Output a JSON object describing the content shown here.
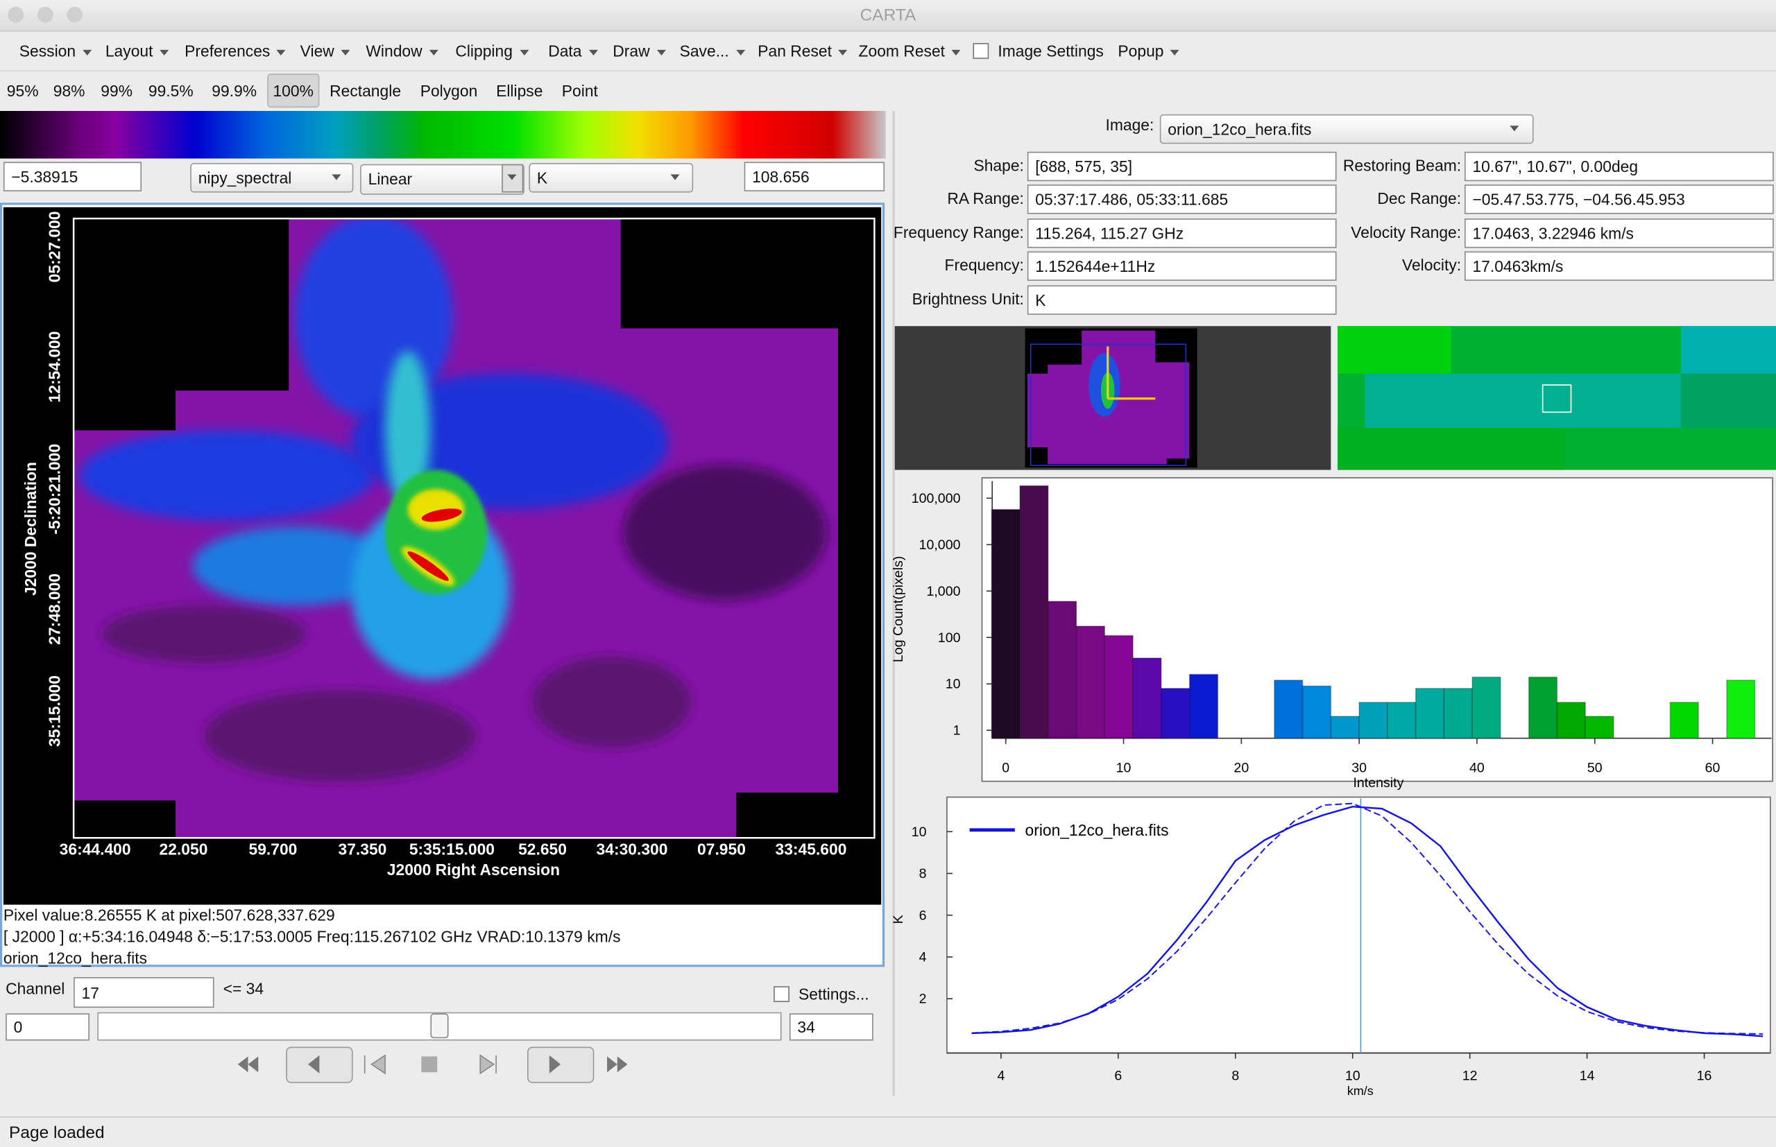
{
  "window": {
    "title": "CARTA"
  },
  "menu": [
    "Session",
    "Layout",
    "Preferences",
    "View",
    "Window",
    "Clipping",
    "Data",
    "Draw",
    "Save...",
    "Pan Reset",
    "Zoom Reset",
    "Image Settings",
    "Popup"
  ],
  "toolbar": [
    "95%",
    "98%",
    "99%",
    "99.5%",
    "99.9%",
    "100%",
    "Rectangle",
    "Polygon",
    "Ellipse",
    "Point"
  ],
  "colormap": {
    "min": "−5.38915",
    "name": "nipy_spectral",
    "scale": "Linear",
    "unit": "K",
    "max": "108.656"
  },
  "image_view": {
    "x_label": "J2000 Right Ascension",
    "y_label": "J2000 Declination",
    "x_ticks": [
      "36:44.400",
      "22.050",
      "59.700",
      "37.350",
      "5:35:15.000",
      "52.650",
      "34:30.300",
      "07.950",
      "33:45.600"
    ],
    "y_ticks": [
      "05:27.000",
      "12:54.000",
      "-5:20:21.000",
      "27:48.000",
      "35:15.000"
    ],
    "status": [
      "Pixel value:8.26555 K at pixel:507.628,337.629",
      "[ J2000 ] α:+5:34:16.04948 δ:−5:17:53.0005 Freq:115.267102 GHz VRAD:10.1379 km/s",
      "orion_12co_hera.fits"
    ]
  },
  "animator": {
    "label": "Channel",
    "value": "17",
    "limit": "<= 34",
    "settings": "Settings...",
    "start": "0",
    "end": "34"
  },
  "info": {
    "image_label": "Image:",
    "image_file": "orion_12co_hera.fits",
    "fields": [
      {
        "label": "Shape:",
        "value": "[688, 575, 35]"
      },
      {
        "label": "Restoring Beam:",
        "value": "10.67\", 10.67\", 0.00deg"
      },
      {
        "label": "RA Range:",
        "value": "05:37:17.486, 05:33:11.685"
      },
      {
        "label": "Dec Range:",
        "value": "−05.47.53.775, −04.56.45.953"
      },
      {
        "label": "Frequency Range:",
        "value": "115.264, 115.27 GHz"
      },
      {
        "label": "Velocity Range:",
        "value": "17.0463, 3.22946 km/s"
      },
      {
        "label": "Frequency:",
        "value": "1.152644e+11Hz"
      },
      {
        "label": "Velocity:",
        "value": "17.0463km/s"
      },
      {
        "label": "Brightness Unit:",
        "value": "K"
      }
    ]
  },
  "histogram": {
    "type": "histogram",
    "x_label": "Intensity",
    "y_label": "Log Count(pixels)",
    "log_scale": true,
    "bins": [
      -1.2,
      1.2,
      3.6,
      6.0,
      8.4,
      10.8,
      13.2,
      15.6,
      18.0,
      20.4,
      22.8,
      25.2,
      27.6,
      30.0,
      32.4,
      34.8,
      37.2,
      39.6,
      42.0,
      44.4,
      46.8,
      49.2,
      51.6,
      54.0,
      56.4,
      58.8,
      61.2,
      63.6
    ],
    "counts": [
      57000,
      185000,
      600,
      175,
      110,
      36,
      8,
      16,
      0,
      0,
      12,
      9,
      2,
      4,
      4,
      8,
      8,
      14,
      0,
      14,
      4,
      2,
      0,
      0,
      4,
      0,
      12
    ],
    "colors": [
      "#1e0a24",
      "#4a0a4e",
      "#6a0a75",
      "#7a0a85",
      "#850595",
      "#5a08a8",
      "#2810c0",
      "#0a1ad0",
      "#0030dd",
      "#0050dd",
      "#0070dd",
      "#0088dd",
      "#0098cc",
      "#00a0b8",
      "#00a8a8",
      "#00aa9e",
      "#00aa90",
      "#00aa80",
      "#00a060",
      "#00a030",
      "#00a800",
      "#00b800",
      "#00c400",
      "#00cc00",
      "#00d800",
      "#00e400",
      "#10ee10"
    ],
    "xlim": [
      -1.15,
      65
    ],
    "ylim": [
      0.675,
      232000
    ],
    "xticks": [
      0,
      10,
      20,
      30,
      40,
      50,
      60
    ],
    "yticks": [
      {
        "value": 100000,
        "label": "100,000"
      },
      {
        "value": 10000,
        "label": "10,000"
      },
      {
        "value": 1000,
        "label": "1,000"
      },
      100,
      10,
      1
    ]
  },
  "profile": {
    "type": "line",
    "x_label": "km/s",
    "y_label": "K",
    "x": [
      3.5,
      4,
      4.5,
      5,
      5.5,
      6,
      6.5,
      7,
      7.5,
      8,
      8.5,
      9,
      9.5,
      10,
      10.5,
      11,
      11.5,
      12,
      12.5,
      13,
      13.5,
      14,
      14.5,
      15,
      15.5,
      16,
      16.5,
      17
    ],
    "series": [
      {
        "name": "orion_12co_hera.fits",
        "color": "#1414dc",
        "values": [
          0.35,
          0.4,
          0.5,
          0.8,
          1.3,
          2.1,
          3.2,
          4.8,
          6.6,
          8.6,
          9.6,
          10.3,
          10.8,
          11.2,
          11.1,
          10.4,
          9.3,
          7.4,
          5.6,
          3.9,
          2.5,
          1.6,
          1.0,
          0.7,
          0.5,
          0.35,
          0.3,
          0.2
        ]
      }
    ],
    "fit": {
      "color": "#1414dc",
      "dash": true,
      "values": [
        0.36,
        0.43,
        0.58,
        0.83,
        1.28,
        1.97,
        2.95,
        4.26,
        5.84,
        7.55,
        9.19,
        10.5,
        11.27,
        11.35,
        10.75,
        9.48,
        7.89,
        6.17,
        4.55,
        3.19,
        2.13,
        1.39,
        0.91,
        0.62,
        0.45,
        0.37,
        0.33,
        0.31
      ]
    },
    "cursor": 10.1379,
    "xlim": [
      3.25,
      17.07
    ],
    "ylim": [
      -0.6,
      11.6
    ],
    "xticks": [
      4,
      6,
      8,
      10,
      12,
      14,
      16
    ],
    "yticks": [
      2,
      4,
      6,
      8,
      10
    ]
  },
  "statusbar": "Page loaded"
}
